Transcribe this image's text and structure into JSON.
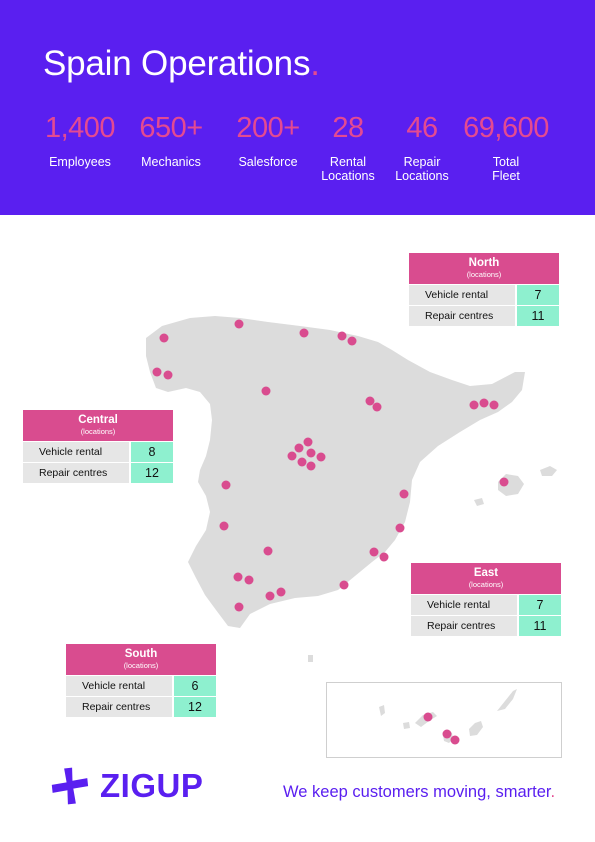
{
  "header": {
    "title": "Spain Operations",
    "title_dot": ".",
    "stats": [
      {
        "value": "1,400",
        "label": "Employees"
      },
      {
        "value": "650+",
        "label": "Mechanics"
      },
      {
        "value": "200+",
        "label": "Salesforce"
      },
      {
        "value": "28",
        "label": "Rental\nLocations"
      },
      {
        "value": "46",
        "label": "Repair\nLocations"
      },
      {
        "value": "69,600",
        "label": "Total\nFleet"
      }
    ]
  },
  "regions": {
    "north": {
      "name": "North",
      "sub": "(locations)",
      "rows": [
        {
          "label": "Vehicle rental",
          "value": "7"
        },
        {
          "label": "Repair centres",
          "value": "11"
        }
      ]
    },
    "central": {
      "name": "Central",
      "sub": "(locations)",
      "rows": [
        {
          "label": "Vehicle rental",
          "value": "8"
        },
        {
          "label": "Repair centres",
          "value": "12"
        }
      ]
    },
    "east": {
      "name": "East",
      "sub": "(locations)",
      "rows": [
        {
          "label": "Vehicle rental",
          "value": "7"
        },
        {
          "label": "Repair centres",
          "value": "11"
        }
      ]
    },
    "south": {
      "name": "South",
      "sub": "(locations)",
      "rows": [
        {
          "label": "Vehicle rental",
          "value": "6"
        },
        {
          "label": "Repair centres",
          "value": "12"
        }
      ]
    }
  },
  "colors": {
    "brand_purple": "#5a1ff0",
    "accent_pink": "#e44a91",
    "value_green": "#8ef0cf",
    "map_grey": "#dcdcdc"
  },
  "footer": {
    "logo_text": "ZIGUP",
    "logo_icon": "zigup-plus-mark-icon",
    "tagline": "We keep customers moving, smarter",
    "tagline_dot": "."
  }
}
